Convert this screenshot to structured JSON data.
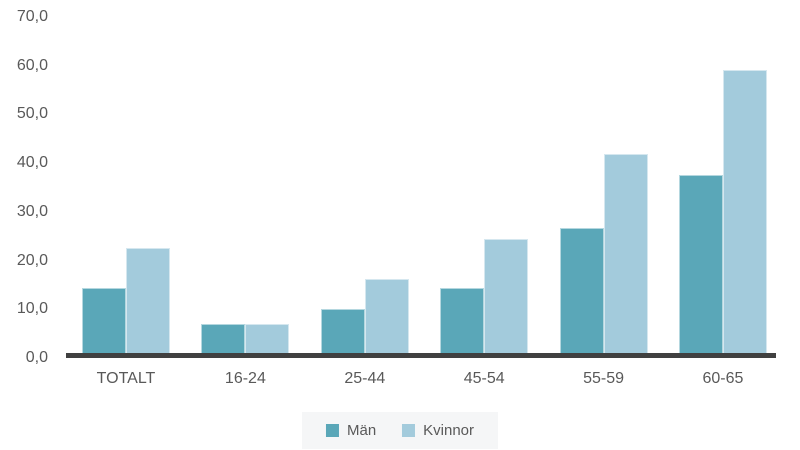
{
  "chart_data": {
    "type": "bar",
    "title": "",
    "xlabel": "",
    "ylabel": "",
    "categories": [
      "TOTALT",
      "16-24",
      "25-44",
      "45-54",
      "55-59",
      "60-65"
    ],
    "series": [
      {
        "name": "Män",
        "color": "#5aa7b8",
        "values": [
          13.5,
          6.0,
          9.2,
          13.5,
          26.1,
          37.0
        ]
      },
      {
        "name": "Kvinnor",
        "color": "#a3cbdc",
        "values": [
          21.8,
          6.1,
          15.5,
          23.8,
          41.4,
          58.9
        ]
      }
    ],
    "ylim": [
      0,
      70
    ],
    "y_tick_values": [
      0,
      10,
      20,
      30,
      40,
      50,
      60,
      70
    ],
    "y_tick_labels": [
      "0,0",
      "10,0",
      "20,0",
      "30,0",
      "40,0",
      "50,0",
      "60,0",
      "70,0"
    ],
    "grid": "off",
    "axis_line_color": "#404040",
    "text_color": "#595959",
    "legend_position": "bottom-center",
    "legend_background": "#f5f6f7"
  }
}
